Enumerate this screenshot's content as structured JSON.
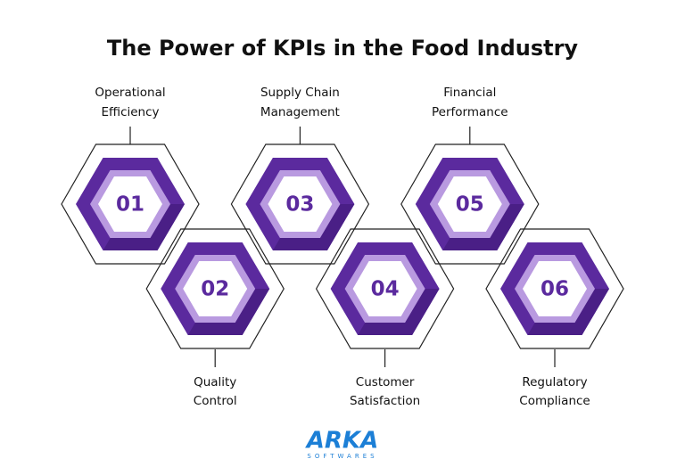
{
  "title": "The Power of KPIs in the Food Industry",
  "items": [
    {
      "number": "01",
      "label": [
        "Operational",
        "Efficiency"
      ]
    },
    {
      "number": "02",
      "label": [
        "Quality",
        "Control"
      ]
    },
    {
      "number": "03",
      "label": [
        "Supply Chain",
        "Management"
      ]
    },
    {
      "number": "04",
      "label": [
        "Customer",
        "Satisfaction"
      ]
    },
    {
      "number": "05",
      "label": [
        "Financial",
        "Performance"
      ]
    },
    {
      "number": "06",
      "label": [
        "Regulatory",
        "Compliance"
      ]
    }
  ],
  "logo": {
    "name": "ARKA",
    "tagline": "SOFTWARES"
  }
}
